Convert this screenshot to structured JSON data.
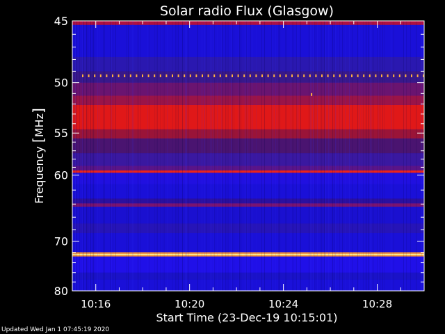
{
  "chart_data": {
    "type": "heatmap",
    "title": "Solar radio Flux (Glasgow)",
    "xlabel": "Start Time (23-Dec-19 10:15:01)",
    "ylabel_text": "Frequency ",
    "ylabel_unit": "MHz",
    "x_ticks": [
      "10:16",
      "10:20",
      "10:24",
      "10:28"
    ],
    "x_tick_minutes": [
      1,
      5,
      9,
      13
    ],
    "xlim_minutes": [
      0,
      15
    ],
    "y_ticks": [
      "45",
      "50",
      "55",
      "60",
      "70",
      "80"
    ],
    "y_tick_values": [
      45,
      50,
      55,
      60,
      70,
      80
    ],
    "ylim": [
      45,
      80
    ],
    "y_scale": "reciprocal",
    "bands": [
      {
        "from": 45.0,
        "to": 45.3,
        "color": "#b01040"
      },
      {
        "from": 45.3,
        "to": 47.8,
        "color": "#1a10d8"
      },
      {
        "from": 47.8,
        "to": 49.0,
        "color": "#2a18b0"
      },
      {
        "from": 49.0,
        "to": 50.0,
        "color": "#38188a"
      },
      {
        "from": 50.0,
        "to": 51.2,
        "color": "#6a1470"
      },
      {
        "from": 51.2,
        "to": 52.1,
        "color": "#9a1448"
      },
      {
        "from": 52.1,
        "to": 54.6,
        "color": "#e01818"
      },
      {
        "from": 54.6,
        "to": 55.6,
        "color": "#9a1438"
      },
      {
        "from": 55.6,
        "to": 57.3,
        "color": "#4a1470"
      },
      {
        "from": 57.3,
        "to": 58.8,
        "color": "#3a18a0"
      },
      {
        "from": 58.8,
        "to": 59.4,
        "color": "#5a1488"
      },
      {
        "from": 59.4,
        "to": 59.7,
        "color": "#ee2418"
      },
      {
        "from": 59.7,
        "to": 61.2,
        "color": "#2010e0"
      },
      {
        "from": 61.2,
        "to": 63.2,
        "color": "#1a10d8"
      },
      {
        "from": 63.2,
        "to": 63.9,
        "color": "#2a10a0"
      },
      {
        "from": 63.9,
        "to": 64.4,
        "color": "#7a1470"
      },
      {
        "from": 64.4,
        "to": 67.0,
        "color": "#1a10d0"
      },
      {
        "from": 67.0,
        "to": 68.6,
        "color": "#2614b8"
      },
      {
        "from": 68.6,
        "to": 72.0,
        "color": "#1a10d8"
      },
      {
        "from": 72.0,
        "to": 72.3,
        "color": "#ff9a30"
      },
      {
        "from": 72.3,
        "to": 72.5,
        "color": "#fffaa0"
      },
      {
        "from": 72.5,
        "to": 72.8,
        "color": "#ff9a30"
      },
      {
        "from": 72.8,
        "to": 76.0,
        "color": "#2010e8"
      },
      {
        "from": 76.0,
        "to": 77.5,
        "color": "#1a12c8"
      },
      {
        "from": 77.5,
        "to": 80.0,
        "color": "#1a10d8"
      }
    ],
    "dotted_line": {
      "freq": 49.4,
      "color": "#ffb040"
    },
    "spot": {
      "minute": 10.2,
      "freq": 51.1,
      "color": "#ffb040"
    },
    "grid": false
  },
  "footer": {
    "updated": "Updated Wed Jan  1 07:45:19 2020"
  }
}
